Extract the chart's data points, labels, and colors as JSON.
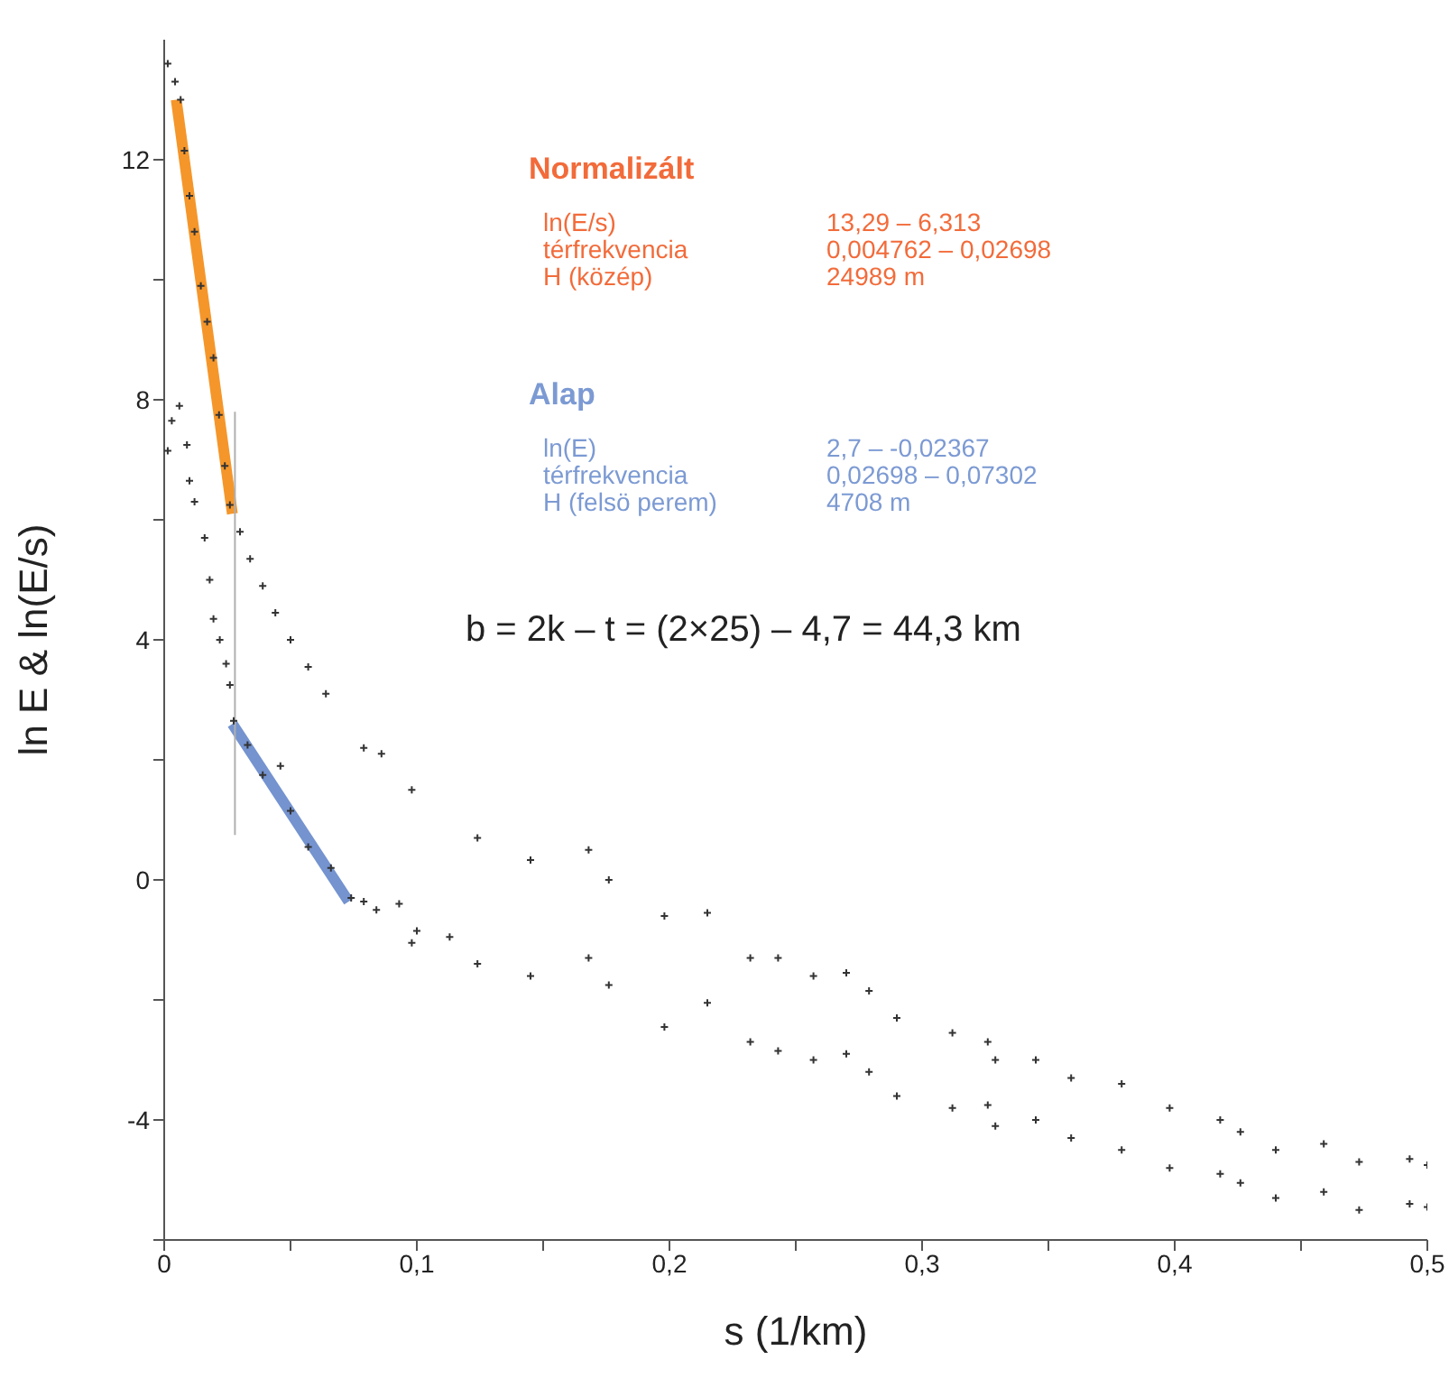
{
  "chart_data": {
    "type": "scatter",
    "xlabel": "s (1/km)",
    "ylabel": "ln E & ln(E/s)",
    "marker": "cross",
    "xlim": [
      0,
      0.5
    ],
    "ylim": [
      -6,
      14
    ],
    "xticks": [
      {
        "value": 0,
        "label": "0"
      },
      {
        "value": 0.05,
        "label": null
      },
      {
        "value": 0.1,
        "label": "0,1"
      },
      {
        "value": 0.15,
        "label": null
      },
      {
        "value": 0.2,
        "label": "0,2"
      },
      {
        "value": 0.25,
        "label": null
      },
      {
        "value": 0.3,
        "label": "0,3"
      },
      {
        "value": 0.35,
        "label": null
      },
      {
        "value": 0.4,
        "label": "0,4"
      },
      {
        "value": 0.45,
        "label": null
      },
      {
        "value": 0.5,
        "label": "0,5"
      }
    ],
    "yticks": [
      {
        "value": -6,
        "label": null
      },
      -4,
      {
        "value": -2,
        "label": null
      },
      0,
      {
        "value": 2,
        "label": null
      },
      4,
      {
        "value": 6,
        "label": null
      },
      8,
      {
        "value": 10,
        "label": null
      },
      12
    ],
    "annotations": [
      "Normalizált",
      "ln(E/s)",
      "13,29 – 6,313",
      "térfrekvencia",
      "0,004762 – 0,02698",
      "H (közép)",
      "24989 m",
      "Alap",
      "ln(E)",
      "2,7 – -0,02367",
      "térfrekvencia",
      "0,02698 – 0,07302",
      "H (felsö perem)",
      "4708 m",
      "b = 2k – t = (2×25) – 4,7 = 44,3 km"
    ],
    "series": [
      {
        "color": "#333333",
        "x": [
          0.0014,
          0.0043,
          0.0065,
          0.008,
          0.01,
          0.012,
          0.0145,
          0.017,
          0.0195,
          0.0217,
          0.024,
          0.026,
          0.03,
          0.034,
          0.039,
          0.044,
          0.05,
          0.057,
          0.064,
          0.079,
          0.086,
          0.098,
          0.124,
          0.145,
          0.168,
          0.176,
          0.198,
          0.215,
          0.232,
          0.243,
          0.257,
          0.27,
          0.279,
          0.29,
          0.312,
          0.326,
          0.329,
          0.345,
          0.359,
          0.379,
          0.398,
          0.418,
          0.426,
          0.44,
          0.459,
          0.473,
          0.493,
          0.5
        ],
        "values": [
          13.6,
          13.3,
          13.0,
          12.15,
          11.4,
          10.8,
          9.9,
          9.3,
          8.7,
          7.75,
          6.9,
          6.25,
          5.8,
          5.35,
          4.9,
          4.45,
          4.0,
          3.55,
          3.1,
          2.2,
          2.1,
          1.5,
          0.7,
          0.33,
          0.5,
          0,
          -0.6,
          -0.55,
          -1.3,
          -1.3,
          -1.6,
          -1.55,
          -1.85,
          -2.3,
          -2.55,
          -2.7,
          -3.0,
          -3.0,
          -3.3,
          -3.4,
          -3.8,
          -4.0,
          -4.2,
          -4.5,
          -4.4,
          -4.7,
          -4.65,
          -4.75
        ]
      },
      {
        "color": "#333333",
        "x": [
          0.0014,
          0.003,
          0.006,
          0.009,
          0.01,
          0.012,
          0.016,
          0.018,
          0.0195,
          0.022,
          0.0245,
          0.026,
          0.0275,
          0.033,
          0.039,
          0.046,
          0.05,
          0.057,
          0.066,
          0.074,
          0.079,
          0.084,
          0.093,
          0.098,
          0.1,
          0.113,
          0.124,
          0.145,
          0.168,
          0.176,
          0.198,
          0.215,
          0.232,
          0.243,
          0.257,
          0.27,
          0.279,
          0.29,
          0.312,
          0.326,
          0.329,
          0.345,
          0.359,
          0.379,
          0.398,
          0.418,
          0.426,
          0.44,
          0.459,
          0.473,
          0.493,
          0.5
        ],
        "values": [
          7.15,
          7.65,
          7.9,
          7.25,
          6.65,
          6.3,
          5.7,
          5.0,
          4.35,
          4.0,
          3.6,
          3.25,
          2.65,
          2.25,
          1.75,
          1.9,
          1.15,
          0.55,
          0.2,
          -0.3,
          -0.36,
          -0.5,
          -0.4,
          -1.05,
          -0.85,
          -0.95,
          -1.4,
          -1.6,
          -1.3,
          -1.75,
          -2.45,
          -2.05,
          -2.7,
          -2.85,
          -3.0,
          -2.9,
          -3.2,
          -3.6,
          -3.8,
          -3.75,
          -4.1,
          -4.0,
          -4.3,
          -4.5,
          -4.8,
          -4.9,
          -5.05,
          -5.3,
          -5.2,
          -5.5,
          -5.4,
          -5.45
        ]
      },
      {
        "type": "line",
        "marker": "none",
        "color": "#f5962a",
        "x": [
          0.004762,
          0.02698
        ],
        "values": [
          13.0,
          6.1
        ]
      },
      {
        "type": "line",
        "marker": "none",
        "color": "#7493cf",
        "x": [
          0.02698,
          0.07302
        ],
        "values": [
          2.6,
          -0.36
        ]
      },
      {
        "type": "line",
        "marker": "none",
        "color": "#b0b0b0",
        "x": [
          0.028,
          0.028
        ],
        "values": [
          7.8,
          0.75
        ]
      }
    ]
  }
}
